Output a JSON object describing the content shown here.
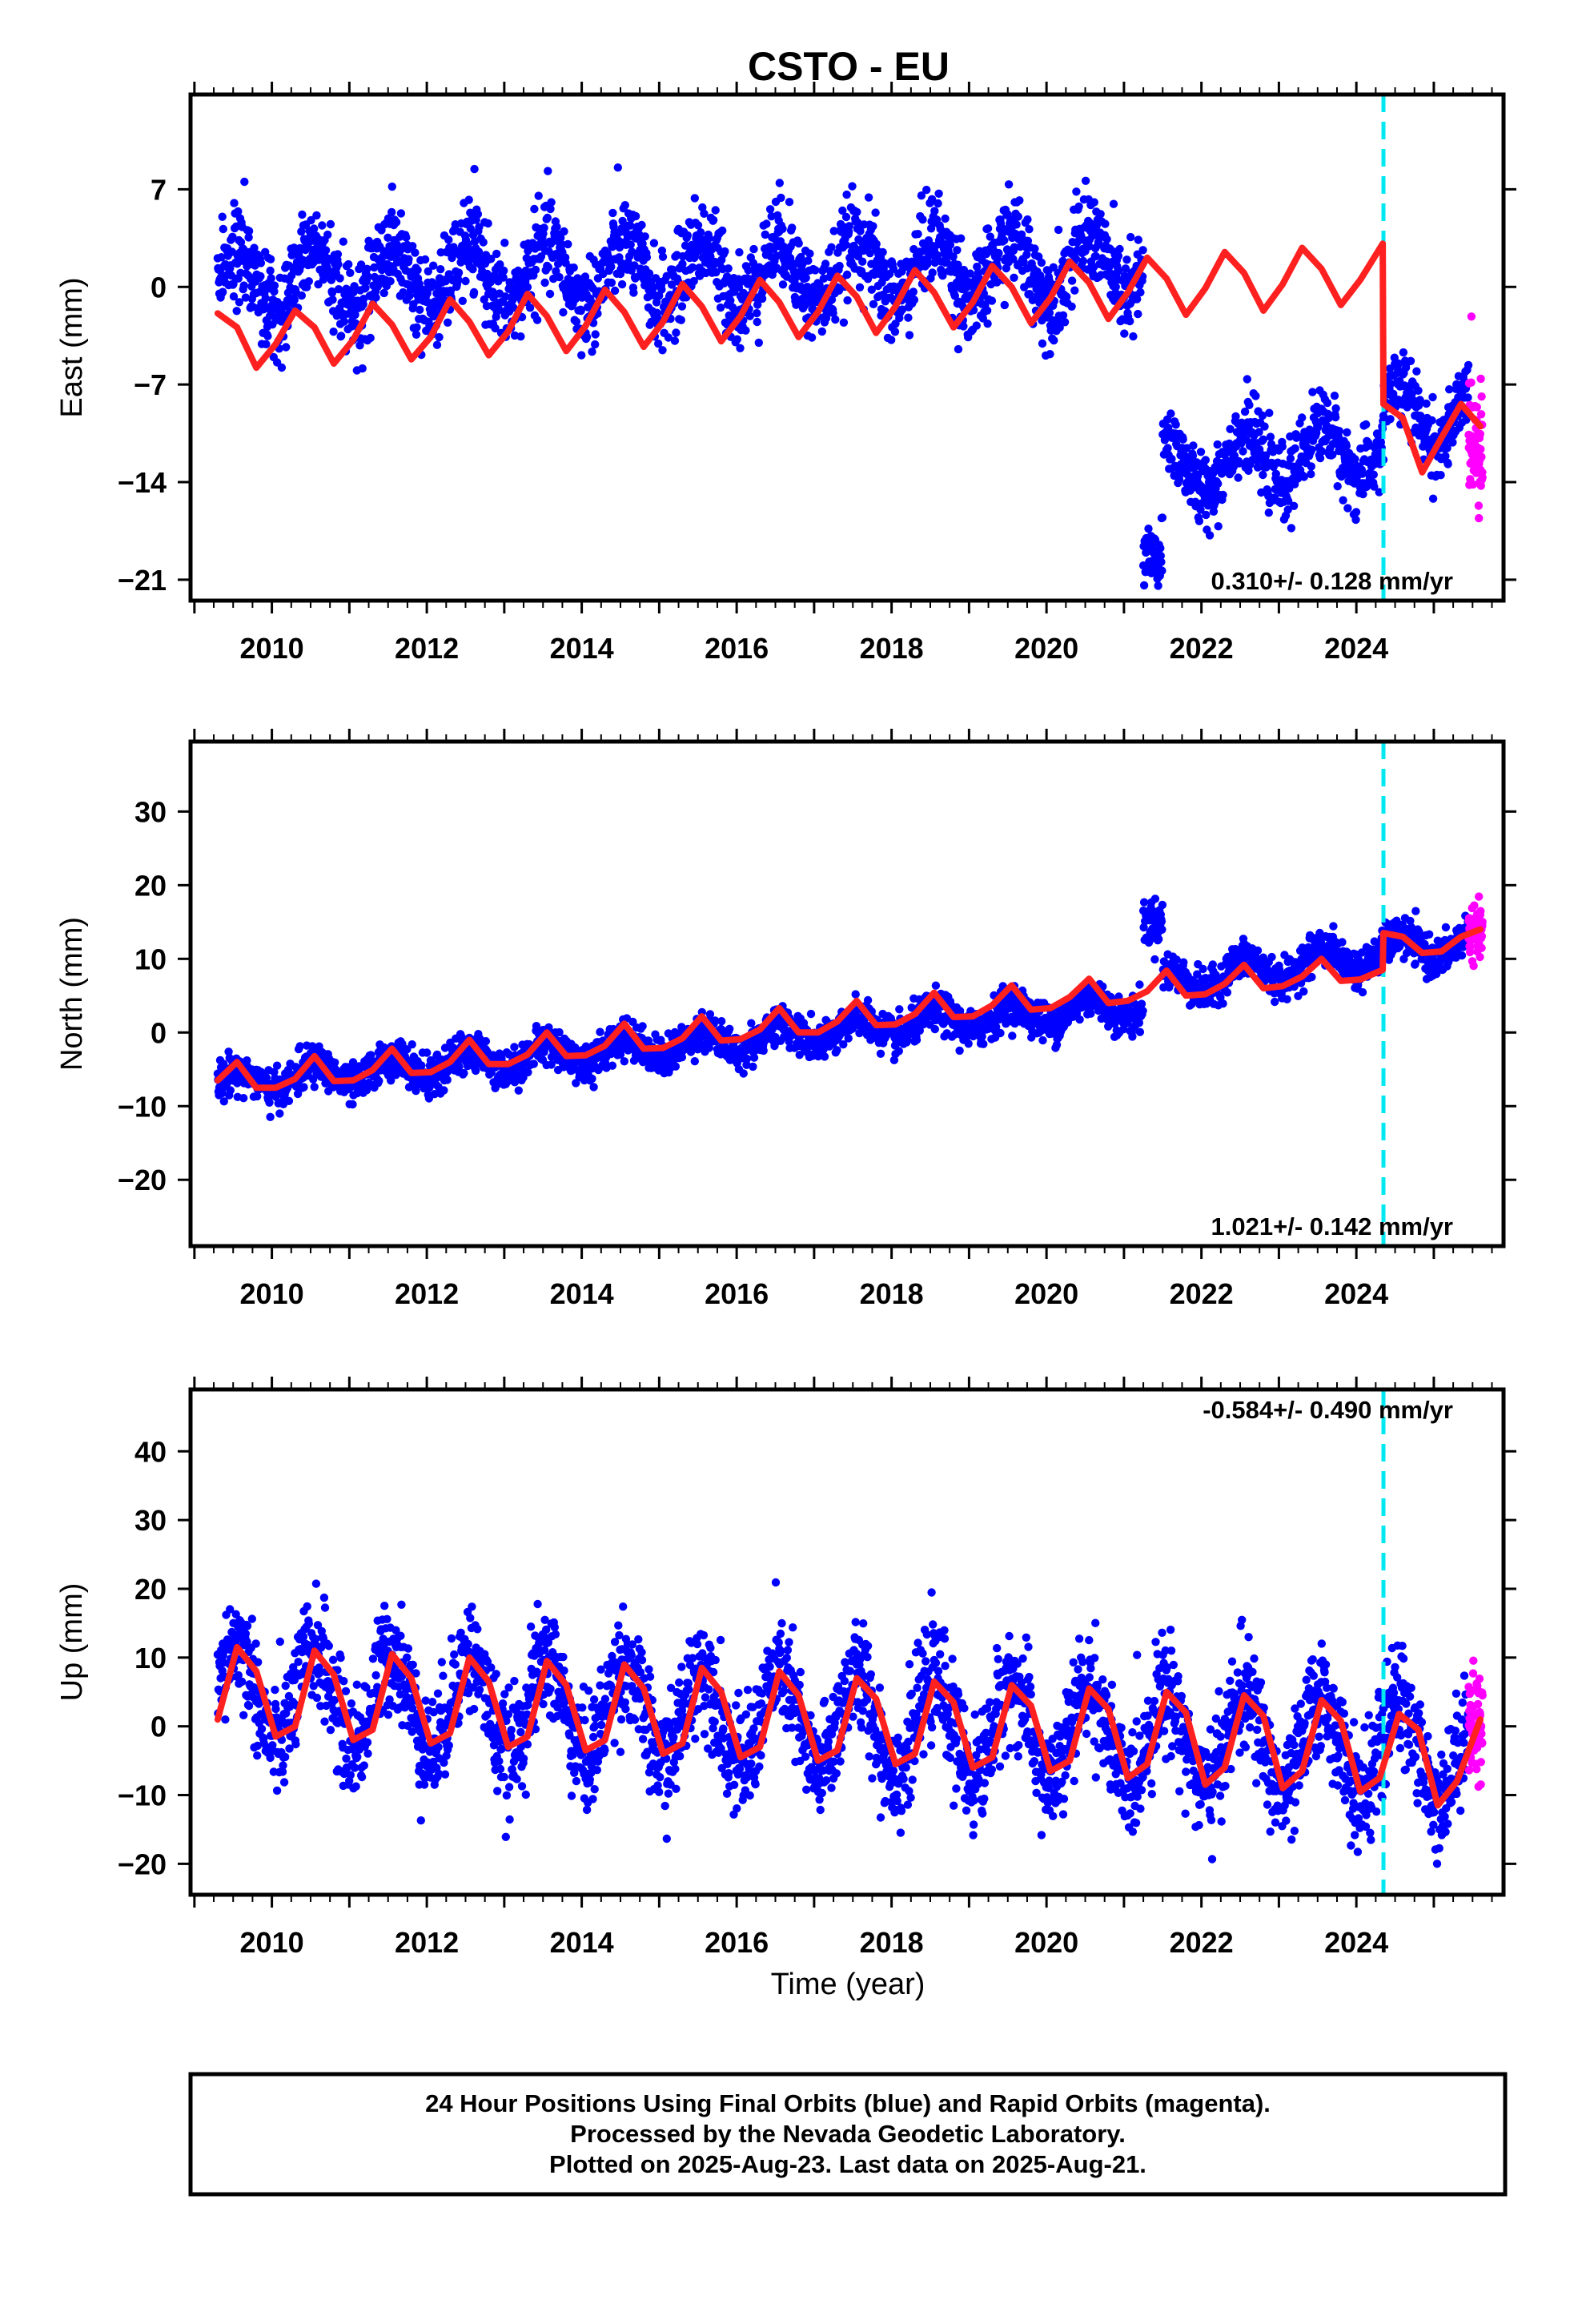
{
  "title": "CSTO - EU",
  "xlabel": "Time (year)",
  "footer": {
    "lines": [
      "24 Hour Positions Using Final Orbits (blue) and Rapid Orbits (magenta).",
      "Processed by the Nevada Geodetic Laboratory.",
      "Plotted on 2025-Aug-23. Last data on 2025-Aug-21."
    ]
  },
  "colors": {
    "final_orbits": "#0000ff",
    "rapid_orbits": "#ff00ff",
    "model": "#ff2020",
    "equipment_change": "#00e8f0",
    "frame": "#000000"
  },
  "chart_data": [
    {
      "type": "scatter",
      "component": "East",
      "ylabel": "East (mm)",
      "xlim": [
        2008.95,
        2025.9
      ],
      "ylim": [
        -22.5,
        13.8
      ],
      "xticks": [
        "2010",
        "2012",
        "2014",
        "2016",
        "2018",
        "2020",
        "2022",
        "2024"
      ],
      "yticks": [
        "7",
        "0",
        "−7",
        "−14",
        "−21"
      ],
      "ytick_values": [
        7,
        0,
        -7,
        -14,
        -21
      ],
      "rate": "0.310+/- 0.128 mm/yr",
      "rate_position": "bottom-right",
      "equipment_change_year": 2024.35,
      "series": [
        {
          "name": "Final Orbits (blue)",
          "kind": "daily-positions",
          "x_range": [
            2009.3,
            2025.45
          ],
          "segments": [
            {
              "x_range": [
                2009.3,
                2021.25
              ],
              "trend": [
                0.4,
                1.6
              ],
              "seasonal_amplitude": 2.2,
              "scatter": 1.6
            },
            {
              "x_range": [
                2021.25,
                2021.5
              ],
              "trend": [
                -19.5,
                -19.5
              ],
              "seasonal_amplitude": 0,
              "scatter": 1.3
            },
            {
              "x_range": [
                2021.5,
                2024.35
              ],
              "trend": [
                -13.0,
                -11.5
              ],
              "seasonal_amplitude": 2.0,
              "scatter": 1.3
            },
            {
              "x_range": [
                2024.35,
                2025.45
              ],
              "trend": [
                -9.5,
                -9.0
              ],
              "seasonal_amplitude": 2.2,
              "scatter": 1.3
            }
          ]
        },
        {
          "name": "Rapid Orbits (magenta)",
          "kind": "daily-positions",
          "x_range": [
            2025.45,
            2025.63
          ],
          "trend": [
            -10.5,
            -11.5
          ],
          "scatter": 2.0
        },
        {
          "name": "Model",
          "kind": "model-curve",
          "x": [
            2009.3,
            2009.55,
            2009.8,
            2010.05,
            2010.3,
            2010.55,
            2010.8,
            2011.05,
            2011.3,
            2011.55,
            2011.8,
            2012.05,
            2012.3,
            2012.55,
            2012.8,
            2013.05,
            2013.3,
            2013.55,
            2013.8,
            2014.05,
            2014.3,
            2014.55,
            2014.8,
            2015.05,
            2015.3,
            2015.55,
            2015.8,
            2016.05,
            2016.3,
            2016.55,
            2016.8,
            2017.05,
            2017.3,
            2017.55,
            2017.8,
            2018.05,
            2018.3,
            2018.55,
            2018.8,
            2019.05,
            2019.3,
            2019.55,
            2019.8,
            2020.05,
            2020.3,
            2020.55,
            2020.8,
            2021.05,
            2021.3,
            2021.55,
            2021.8,
            2022.05,
            2022.3,
            2022.55,
            2022.8,
            2023.05,
            2023.3,
            2023.55,
            2023.8,
            2024.05,
            2024.34,
            2024.35,
            2024.6,
            2024.85,
            2025.1,
            2025.35,
            2025.6
          ],
          "y": [
            -1.9,
            -2.9,
            -5.8,
            -4.1,
            -1.7,
            -2.9,
            -5.5,
            -3.8,
            -1.2,
            -2.7,
            -5.2,
            -3.6,
            -0.9,
            -2.5,
            -4.9,
            -3.2,
            -0.5,
            -2.1,
            -4.6,
            -2.8,
            -0.2,
            -1.8,
            -4.3,
            -2.5,
            0.2,
            -1.4,
            -3.9,
            -2.1,
            0.5,
            -1.1,
            -3.6,
            -1.8,
            0.8,
            -0.7,
            -3.3,
            -1.4,
            1.2,
            -0.4,
            -2.9,
            -1.1,
            1.5,
            0.0,
            -2.6,
            -0.8,
            1.8,
            0.3,
            -2.3,
            -0.4,
            2.1,
            0.6,
            -2.0,
            -0.1,
            2.5,
            1.0,
            -1.7,
            0.2,
            2.8,
            1.3,
            -1.3,
            0.5,
            3.1,
            -8.4,
            -9.4,
            -13.3,
            -10.8,
            -8.4,
            -10.0
          ]
        }
      ]
    },
    {
      "type": "scatter",
      "component": "North",
      "ylabel": "North (mm)",
      "xlim": [
        2008.95,
        2025.9
      ],
      "ylim": [
        -29,
        39.5
      ],
      "xticks": [
        "2010",
        "2012",
        "2014",
        "2016",
        "2018",
        "2020",
        "2022",
        "2024"
      ],
      "yticks": [
        "30",
        "20",
        "10",
        "0",
        "−10",
        "−20"
      ],
      "ytick_values": [
        30,
        20,
        10,
        0,
        -10,
        -20
      ],
      "rate": "1.021+/- 0.142 mm/yr",
      "rate_position": "bottom-right",
      "equipment_change_year": 2024.35,
      "series": [
        {
          "name": "Final Orbits (blue)",
          "kind": "daily-positions",
          "x_range": [
            2009.3,
            2025.45
          ],
          "segments": [
            {
              "x_range": [
                2009.3,
                2021.25
              ],
              "trend": [
                -7.0,
                3.8
              ],
              "seasonal_amplitude": 1.6,
              "scatter": 1.3
            },
            {
              "x_range": [
                2021.25,
                2021.5
              ],
              "trend": [
                15.0,
                15.0
              ],
              "seasonal_amplitude": 0,
              "scatter": 1.5
            },
            {
              "x_range": [
                2021.5,
                2025.45
              ],
              "trend": [
                6.5,
                12.5
              ],
              "seasonal_amplitude": 1.8,
              "scatter": 1.3
            }
          ]
        },
        {
          "name": "Rapid Orbits (magenta)",
          "kind": "daily-positions",
          "x_range": [
            2025.45,
            2025.63
          ],
          "trend": [
            13.5,
            13.5
          ],
          "scatter": 1.5
        },
        {
          "name": "Model",
          "kind": "model-curve",
          "x": [
            2009.3,
            2009.55,
            2009.8,
            2010.05,
            2010.3,
            2010.55,
            2010.8,
            2011.05,
            2011.3,
            2011.55,
            2011.8,
            2012.05,
            2012.3,
            2012.55,
            2012.8,
            2013.05,
            2013.3,
            2013.55,
            2013.8,
            2014.05,
            2014.3,
            2014.55,
            2014.8,
            2015.05,
            2015.3,
            2015.55,
            2015.8,
            2016.05,
            2016.3,
            2016.55,
            2016.8,
            2017.05,
            2017.3,
            2017.55,
            2017.8,
            2018.05,
            2018.3,
            2018.55,
            2018.8,
            2019.05,
            2019.3,
            2019.55,
            2019.8,
            2020.05,
            2020.3,
            2020.55,
            2020.8,
            2021.05,
            2021.3,
            2021.55,
            2021.8,
            2022.05,
            2022.3,
            2022.55,
            2022.8,
            2023.05,
            2023.3,
            2023.55,
            2023.8,
            2024.05,
            2024.34,
            2024.35,
            2024.6,
            2024.85,
            2025.1,
            2025.35,
            2025.6
          ],
          "y": [
            -6.5,
            -4.0,
            -7.5,
            -7.5,
            -6.3,
            -3.2,
            -6.6,
            -6.5,
            -5.1,
            -2.2,
            -5.5,
            -5.4,
            -4.0,
            -1.0,
            -4.3,
            -4.3,
            -3.0,
            0.0,
            -3.2,
            -3.1,
            -1.8,
            1.2,
            -2.2,
            -2.1,
            -0.8,
            2.2,
            -1.1,
            -0.9,
            0.4,
            3.3,
            0.0,
            0.0,
            1.5,
            4.3,
            1.0,
            1.1,
            2.5,
            5.4,
            2.1,
            2.2,
            3.7,
            6.4,
            3.1,
            3.3,
            4.8,
            7.3,
            4.0,
            4.3,
            5.6,
            8.4,
            5.0,
            5.2,
            6.6,
            9.2,
            6.0,
            6.3,
            7.6,
            10.0,
            7.0,
            7.2,
            8.5,
            13.5,
            13.0,
            10.8,
            11.0,
            13.0,
            14.0
          ]
        }
      ]
    },
    {
      "type": "scatter",
      "component": "Up",
      "ylabel": "Up (mm)",
      "xlim": [
        2008.95,
        2025.9
      ],
      "ylim": [
        -24.5,
        49
      ],
      "xticks": [
        "2010",
        "2012",
        "2014",
        "2016",
        "2018",
        "2020",
        "2022",
        "2024"
      ],
      "yticks": [
        "40",
        "30",
        "20",
        "10",
        "0",
        "−10",
        "−20"
      ],
      "ytick_values": [
        40,
        30,
        20,
        10,
        0,
        -10,
        -20
      ],
      "rate": "-0.584+/- 0.490 mm/yr",
      "rate_position": "top-right",
      "equipment_change_year": 2024.35,
      "series": [
        {
          "name": "Final Orbits (blue)",
          "kind": "daily-positions",
          "x_range": [
            2009.3,
            2025.45
          ],
          "segments": [
            {
              "x_range": [
                2009.3,
                2025.45
              ],
              "trend": [
                5.0,
                -4.0
              ],
              "seasonal_amplitude": 7.0,
              "scatter": 4.0
            }
          ]
        },
        {
          "name": "Rapid Orbits (magenta)",
          "kind": "daily-positions",
          "x_range": [
            2025.45,
            2025.63
          ],
          "trend": [
            0.0,
            0.0
          ],
          "scatter": 4.0
        },
        {
          "name": "Model",
          "kind": "model-curve",
          "x": [
            2009.3,
            2009.55,
            2009.8,
            2010.05,
            2010.3,
            2010.55,
            2010.8,
            2011.05,
            2011.3,
            2011.55,
            2011.8,
            2012.05,
            2012.3,
            2012.55,
            2012.8,
            2013.05,
            2013.3,
            2013.55,
            2013.8,
            2014.05,
            2014.3,
            2014.55,
            2014.8,
            2015.05,
            2015.3,
            2015.55,
            2015.8,
            2016.05,
            2016.3,
            2016.55,
            2016.8,
            2017.05,
            2017.3,
            2017.55,
            2017.8,
            2018.05,
            2018.3,
            2018.55,
            2018.8,
            2019.05,
            2019.3,
            2019.55,
            2019.8,
            2020.05,
            2020.3,
            2020.55,
            2020.8,
            2021.05,
            2021.3,
            2021.55,
            2021.8,
            2022.05,
            2022.3,
            2022.55,
            2022.8,
            2023.05,
            2023.3,
            2023.55,
            2023.8,
            2024.05,
            2024.3,
            2024.55,
            2024.8,
            2025.05,
            2025.3,
            2025.6
          ],
          "y": [
            1.0,
            11.5,
            8.0,
            -1.5,
            0.0,
            11.0,
            7.5,
            -2.0,
            -0.5,
            10.5,
            7.0,
            -2.5,
            -1.0,
            10.0,
            6.5,
            -3.0,
            -1.5,
            9.5,
            6.0,
            -3.5,
            -2.0,
            9.0,
            5.5,
            -4.0,
            -2.5,
            8.5,
            5.0,
            -4.5,
            -3.0,
            8.0,
            4.5,
            -5.0,
            -3.5,
            7.0,
            4.0,
            -5.5,
            -4.0,
            6.5,
            3.5,
            -6.0,
            -4.5,
            6.0,
            3.0,
            -6.5,
            -5.0,
            5.5,
            2.5,
            -7.5,
            -5.5,
            5.0,
            2.0,
            -8.5,
            -6.0,
            4.5,
            1.5,
            -9.0,
            -6.5,
            3.8,
            0.8,
            -9.5,
            -7.5,
            1.8,
            -0.5,
            -11.5,
            -8.0,
            1.0
          ]
        }
      ]
    }
  ]
}
